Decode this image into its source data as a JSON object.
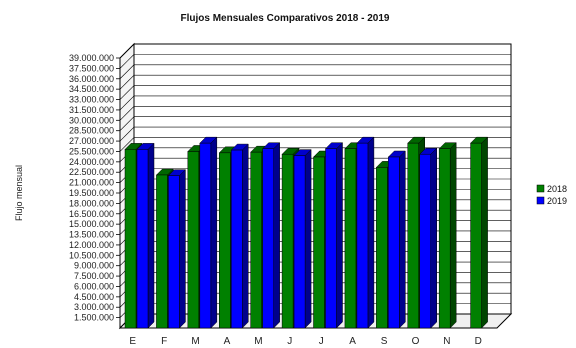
{
  "chart_data": {
    "type": "bar",
    "title": "Flujos Mensuales Comparativos 2018 - 2019",
    "ylabel": "Flujo mensual",
    "xlabel": "",
    "categories": [
      "E",
      "F",
      "M",
      "A",
      "M",
      "J",
      "J",
      "A",
      "S",
      "O",
      "N",
      "D"
    ],
    "series": [
      {
        "name": "2018",
        "color": "#008000",
        "values": [
          25800000,
          22100000,
          25500000,
          25300000,
          25400000,
          25100000,
          24700000,
          25900000,
          23200000,
          26700000,
          25900000,
          26700000
        ]
      },
      {
        "name": "2019",
        "color": "#0000ff",
        "values": [
          25800000,
          22000000,
          26700000,
          25700000,
          25900000,
          24900000,
          25900000,
          26700000,
          24700000,
          25100000,
          null,
          null
        ]
      }
    ],
    "ylim": [
      0,
      39000000
    ],
    "yticks": [
      "1.500.000",
      "3.000.000",
      "4.500.000",
      "6.000.000",
      "7.500.000",
      "9.000.000",
      "10.500.000",
      "12.000.000",
      "13.500.000",
      "15.000.000",
      "16.500.000",
      "18.000.000",
      "19.500.000",
      "21.000.000",
      "22.500.000",
      "24.000.000",
      "25.500.000",
      "27.000.000",
      "28.500.000",
      "30.000.000",
      "31.500.000",
      "33.000.000",
      "34.500.000",
      "36.000.000",
      "37.500.000",
      "39.000.000"
    ],
    "ytick_values": [
      1500000,
      3000000,
      4500000,
      6000000,
      7500000,
      9000000,
      10500000,
      12000000,
      13500000,
      15000000,
      16500000,
      18000000,
      19500000,
      21000000,
      22500000,
      24000000,
      25500000,
      27000000,
      28500000,
      30000000,
      31500000,
      33000000,
      34500000,
      36000000,
      37500000,
      39000000
    ],
    "grid": true,
    "legend": "right"
  }
}
